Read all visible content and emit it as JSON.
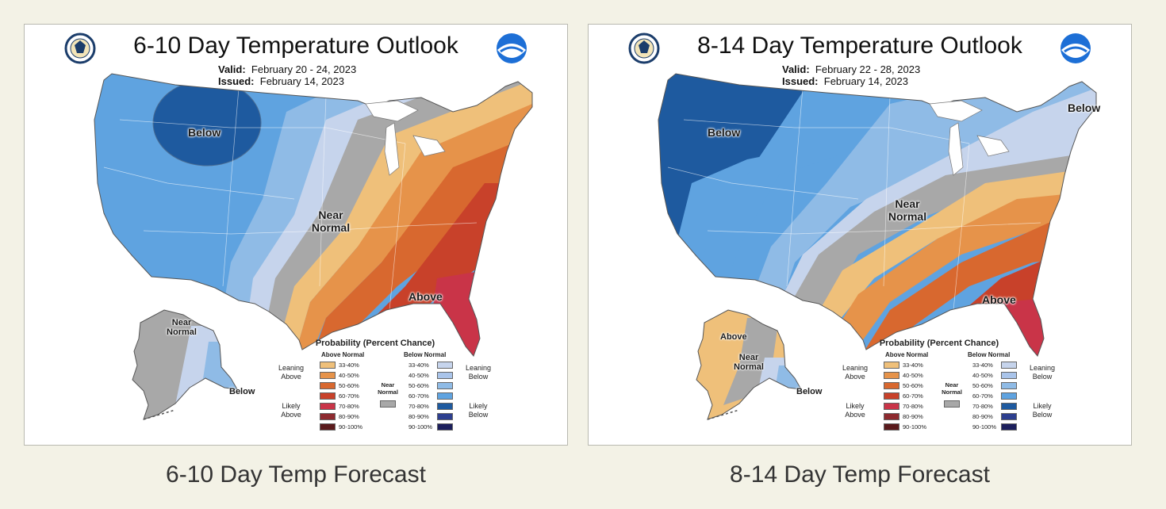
{
  "colors": {
    "background": "#f3f2e6",
    "below_60_70": "#3f8fd9",
    "below_50_60": "#5fa3e0",
    "below_40_50": "#8fbbe6",
    "below_33_40": "#c6d4ec",
    "near_normal": "#a8a8a8",
    "above_33_40": "#efc07a",
    "above_40_50": "#e6934a",
    "above_50_60": "#d8682f",
    "above_60_70": "#c8412a",
    "above_70_80": "#c93448",
    "dark_below": "#1e5a9f"
  },
  "legend": {
    "title": "Probability (Percent Chance)",
    "above_header": "Above Normal",
    "below_header": "Below Normal",
    "near_normal_label": "Near Normal",
    "above_ranges": [
      "33-40%",
      "40-50%",
      "50-60%",
      "60-70%",
      "70-80%",
      "80-90%",
      "90-100%"
    ],
    "below_ranges": [
      "33-40%",
      "40-50%",
      "50-60%",
      "60-70%",
      "70-80%",
      "80-90%",
      "90-100%"
    ],
    "above_colors": [
      "#efc07a",
      "#e6934a",
      "#d8682f",
      "#c8412a",
      "#c93448",
      "#8e2a2f",
      "#5a1a1c"
    ],
    "below_colors": [
      "#c6d4ec",
      "#a9c4ea",
      "#8fbbe6",
      "#5fa3e0",
      "#1e5a9f",
      "#2d3f8f",
      "#1c1f5c"
    ],
    "leaning_above": "Leaning Above",
    "likely_above": "Likely Above",
    "leaning_below": "Leaning Below",
    "likely_below": "Likely Below"
  },
  "panels": [
    {
      "title": "6-10 Day Temperature Outlook",
      "valid_label": "Valid:",
      "valid_value": "February 20 - 24, 2023",
      "issued_label": "Issued:",
      "issued_value": "February 14, 2023",
      "caption": "6-10 Day Temp Forecast",
      "labels": {
        "below_main": "Below",
        "near_normal": "Near Normal",
        "above_main": "Above",
        "alaska_near": "Near Normal",
        "alaska_below": "Below"
      }
    },
    {
      "title": "8-14 Day Temperature Outlook",
      "valid_label": "Valid:",
      "valid_value": "February 22 - 28, 2023",
      "issued_label": "Issued:",
      "issued_value": "February 14, 2023",
      "caption": "8-14 Day Temp Forecast",
      "labels": {
        "below_main": "Below",
        "below_ne": "Below",
        "near_normal": "Near Normal",
        "above_main": "Above",
        "alaska_above": "Above",
        "alaska_near": "Near Normal",
        "alaska_below": "Below"
      }
    }
  ]
}
